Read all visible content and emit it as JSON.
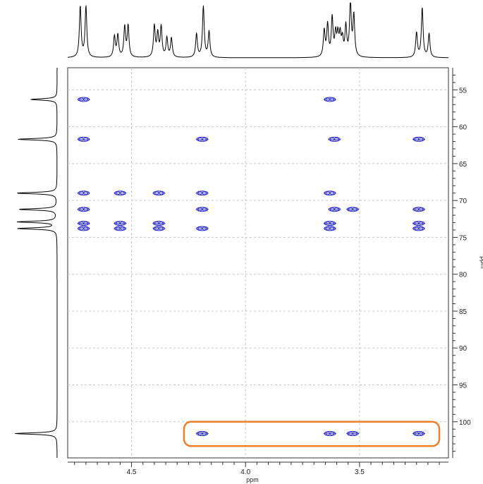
{
  "chart_data": {
    "type": "scatter",
    "subtype": "2D NMR heteronuclear correlation (contour) spectrum",
    "xlabel": "ppm",
    "ylabel": "ppm",
    "x_axis": {
      "direction": "reversed",
      "range": [
        4.78,
        3.11
      ],
      "ticks": [
        4.5,
        4.0,
        3.5
      ],
      "tick_labels": [
        "4.5",
        "4.0",
        "3.5"
      ]
    },
    "y_axis": {
      "direction": "downward",
      "side": "right",
      "range": [
        52.0,
        104.9
      ],
      "ticks": [
        55,
        60,
        65,
        70,
        75,
        80,
        85,
        90,
        95,
        100
      ],
      "tick_labels": [
        "55",
        "60",
        "65",
        "70",
        "75",
        "80",
        "85",
        "90",
        "95",
        "100"
      ]
    },
    "grid": true,
    "contour_color": "#2a2ad0",
    "highlight_color": "#f07f2a",
    "cross_peaks": [
      {
        "x": 4.71,
        "y": 56.3
      },
      {
        "x": 3.63,
        "y": 56.3
      },
      {
        "x": 4.71,
        "y": 61.7
      },
      {
        "x": 4.19,
        "y": 61.7
      },
      {
        "x": 3.61,
        "y": 61.7
      },
      {
        "x": 3.24,
        "y": 61.7
      },
      {
        "x": 4.71,
        "y": 69.0
      },
      {
        "x": 4.55,
        "y": 69.0
      },
      {
        "x": 4.38,
        "y": 69.0
      },
      {
        "x": 4.19,
        "y": 69.0
      },
      {
        "x": 3.63,
        "y": 69.0
      },
      {
        "x": 4.71,
        "y": 71.2
      },
      {
        "x": 4.19,
        "y": 71.2
      },
      {
        "x": 3.61,
        "y": 71.2
      },
      {
        "x": 3.53,
        "y": 71.2
      },
      {
        "x": 3.24,
        "y": 71.2
      },
      {
        "x": 4.71,
        "y": 73.1
      },
      {
        "x": 4.55,
        "y": 73.1
      },
      {
        "x": 4.38,
        "y": 73.1
      },
      {
        "x": 3.63,
        "y": 73.1
      },
      {
        "x": 3.24,
        "y": 73.1
      },
      {
        "x": 4.71,
        "y": 73.8
      },
      {
        "x": 4.55,
        "y": 73.8
      },
      {
        "x": 4.38,
        "y": 73.8
      },
      {
        "x": 4.19,
        "y": 73.8
      },
      {
        "x": 3.63,
        "y": 73.8
      },
      {
        "x": 3.24,
        "y": 73.8
      },
      {
        "x": 4.19,
        "y": 101.6
      },
      {
        "x": 3.63,
        "y": 101.6
      },
      {
        "x": 3.53,
        "y": 101.6
      },
      {
        "x": 3.24,
        "y": 101.6
      }
    ],
    "highlight_region": {
      "x_range": [
        4.27,
        3.15
      ],
      "y_range": [
        100.0,
        103.3
      ]
    },
    "f2_projection_peaks": [
      {
        "ppm": 4.725,
        "height": 0.93
      },
      {
        "ppm": 4.7,
        "height": 0.93
      },
      {
        "ppm": 4.575,
        "height": 0.38
      },
      {
        "ppm": 4.56,
        "height": 0.4
      },
      {
        "ppm": 4.53,
        "height": 0.55
      },
      {
        "ppm": 4.515,
        "height": 0.57
      },
      {
        "ppm": 4.4,
        "height": 0.57
      },
      {
        "ppm": 4.385,
        "height": 0.42
      },
      {
        "ppm": 4.37,
        "height": 0.55
      },
      {
        "ppm": 4.345,
        "height": 0.35
      },
      {
        "ppm": 4.325,
        "height": 0.35
      },
      {
        "ppm": 4.215,
        "height": 0.43
      },
      {
        "ppm": 4.185,
        "height": 0.93
      },
      {
        "ppm": 4.16,
        "height": 0.47
      },
      {
        "ppm": 3.655,
        "height": 0.48
      },
      {
        "ppm": 3.64,
        "height": 0.58
      },
      {
        "ppm": 3.62,
        "height": 0.7
      },
      {
        "ppm": 3.605,
        "height": 0.4
      },
      {
        "ppm": 3.595,
        "height": 0.37
      },
      {
        "ppm": 3.585,
        "height": 0.38
      },
      {
        "ppm": 3.575,
        "height": 0.3
      },
      {
        "ppm": 3.56,
        "height": 0.55
      },
      {
        "ppm": 3.54,
        "height": 0.98
      },
      {
        "ppm": 3.525,
        "height": 0.75
      },
      {
        "ppm": 3.25,
        "height": 0.45
      },
      {
        "ppm": 3.225,
        "height": 0.9
      },
      {
        "ppm": 3.195,
        "height": 0.43
      }
    ],
    "f1_projection_peaks": [
      {
        "ppm": 56.3,
        "height": 0.55
      },
      {
        "ppm": 61.7,
        "height": 0.82
      },
      {
        "ppm": 69.0,
        "height": 0.85
      },
      {
        "ppm": 71.2,
        "height": 0.8
      },
      {
        "ppm": 72.9,
        "height": 0.82
      },
      {
        "ppm": 73.8,
        "height": 0.82
      },
      {
        "ppm": 101.6,
        "height": 0.88
      }
    ]
  }
}
